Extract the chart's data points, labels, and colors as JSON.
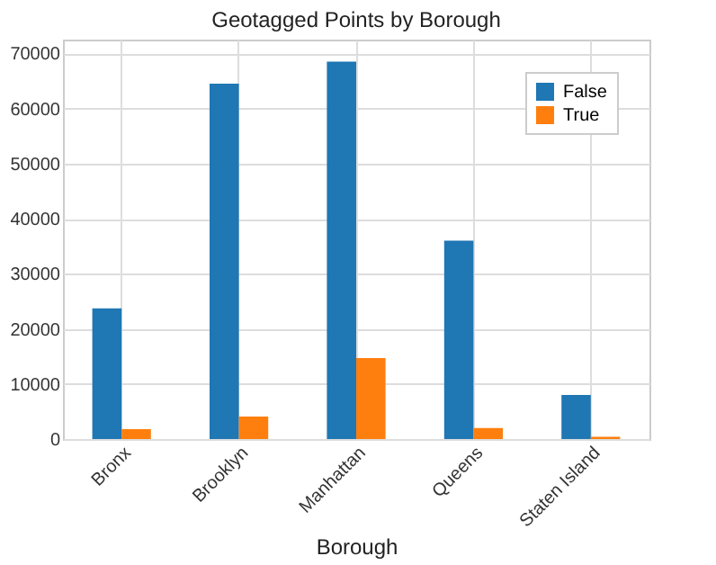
{
  "chart_data": {
    "type": "bar",
    "title": "Geotagged Points by Borough",
    "xlabel": "Borough",
    "categories": [
      "Bronx",
      "Brooklyn",
      "Manhattan",
      "Queens",
      "Staten Island"
    ],
    "series": [
      {
        "name": "False",
        "color": "#1f77b4",
        "values": [
          23700,
          64500,
          68500,
          36000,
          8000
        ]
      },
      {
        "name": "True",
        "color": "#ff7f0e",
        "values": [
          1800,
          4100,
          14700,
          2000,
          400
        ]
      }
    ],
    "ylim": [
      0,
      72500
    ],
    "yticks": [
      0,
      10000,
      20000,
      30000,
      40000,
      50000,
      60000,
      70000
    ],
    "grid": true,
    "legend": "top right"
  }
}
